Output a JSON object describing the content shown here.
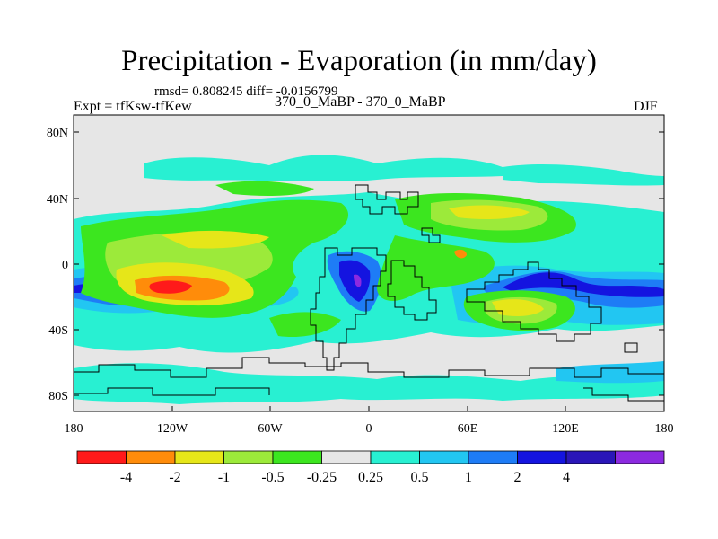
{
  "title": "Precipitation - Evaporation (in mm/day)",
  "stats_line": "rmsd= 0.808245 diff= -0.0156799",
  "experiment_label": "Expt = tfKsw-tfKew",
  "runs_label": "370_0_MaBP - 370_0_MaBP",
  "season_label": "DJF",
  "axes": {
    "x_ticks": [
      "180",
      "120W",
      "60W",
      "0",
      "60E",
      "120E",
      "180"
    ],
    "y_ticks": [
      "80N",
      "40N",
      "0",
      "40S",
      "80S"
    ]
  },
  "colorbar": {
    "colors": [
      "#ff1a1a",
      "#ff8c0a",
      "#e6e619",
      "#9cea3a",
      "#3ce61f",
      "#e6e6e6",
      "#28f0d2",
      "#22c6f2",
      "#1e7cf6",
      "#1414e0",
      "#2a16b8",
      "#8c2ae0"
    ],
    "labels": [
      "-4",
      "-2",
      "-1",
      "-0.5",
      "-0.25",
      "0.25",
      "0.5",
      "1",
      "2",
      "4"
    ]
  },
  "colors": {
    "background_field": "#e6e6e6",
    "frame": "#000000"
  }
}
